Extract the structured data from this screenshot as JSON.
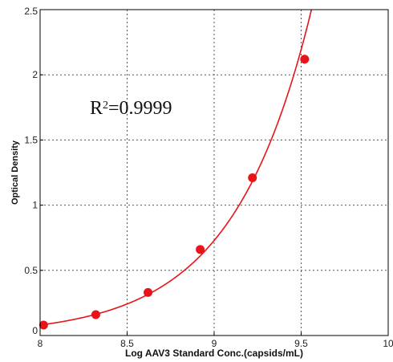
{
  "chart_data": {
    "type": "scatter",
    "title": "",
    "xlabel": "Log AAV3 Standard Conc.(capsids/mL)",
    "ylabel": "Optical Density",
    "xlim": [
      8,
      10
    ],
    "ylim": [
      0,
      2.5
    ],
    "xticks": [
      "8",
      "8.5",
      "9",
      "9.5",
      "10"
    ],
    "yticks": [
      "0",
      "0.5",
      "1",
      "1.5",
      "2",
      "2.5"
    ],
    "grid": true,
    "annotation": {
      "text_prefix": "R",
      "superscript": "2",
      "text_suffix": "=0.9999"
    },
    "series": [
      {
        "points": [
          {
            "x": 8.02,
            "y": 0.08
          },
          {
            "x": 8.32,
            "y": 0.16
          },
          {
            "x": 8.62,
            "y": 0.33
          },
          {
            "x": 8.92,
            "y": 0.66
          },
          {
            "x": 9.22,
            "y": 1.21
          },
          {
            "x": 9.52,
            "y": 2.12
          }
        ],
        "fit": "exponential",
        "color": "#e8141a"
      }
    ]
  }
}
